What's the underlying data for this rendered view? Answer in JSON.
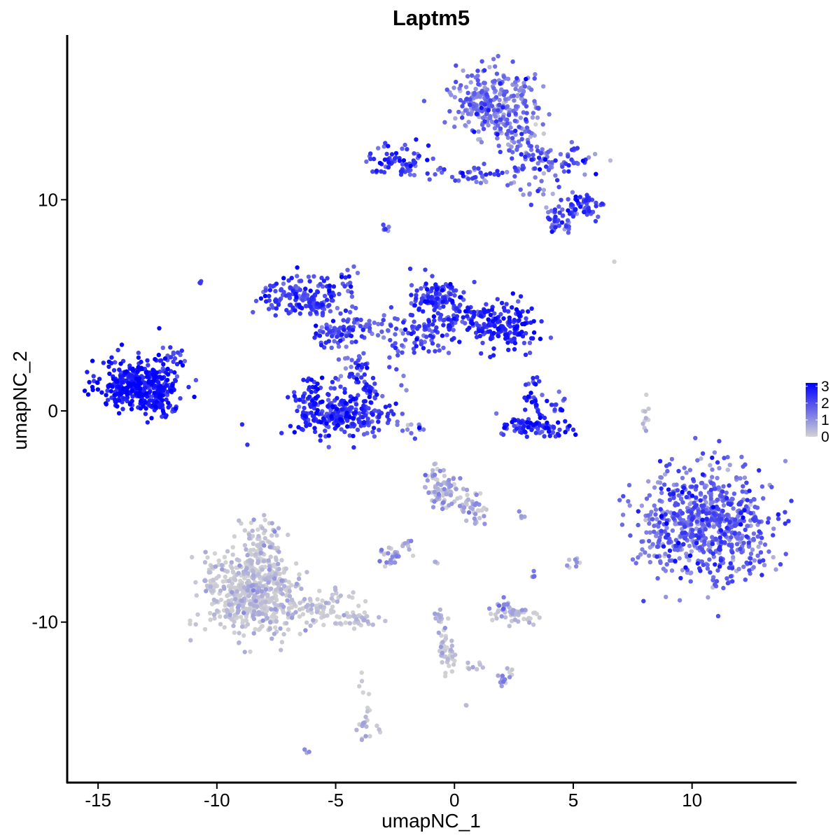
{
  "chart_data": {
    "type": "scatter",
    "title": "Laptm5",
    "xlabel": "umapNC_1",
    "ylabel": "umapNC_2",
    "xlim": [
      -16.3,
      14.4
    ],
    "ylim": [
      -17.6,
      17.8
    ],
    "x_ticks": [
      -15,
      -10,
      -5,
      0,
      5,
      10
    ],
    "y_ticks": [
      -10,
      0,
      10
    ],
    "x_tick_labels": [
      "-15",
      "-10",
      "-5",
      "0",
      "5",
      "10"
    ],
    "y_tick_labels": [
      "-10",
      "0",
      "10"
    ],
    "grid": false,
    "legend": {
      "position": "right",
      "type": "continuous",
      "min": 0,
      "max": 3.2,
      "ticks": [
        0,
        1,
        2,
        3
      ],
      "tick_labels": [
        "0",
        "1",
        "2",
        "3"
      ],
      "colors": [
        "#d3d3d3",
        "#0000ff"
      ]
    },
    "clusters": [
      {
        "cx": -13.3,
        "cy": 1.2,
        "sx": 0.8,
        "sy": 0.6,
        "n": 380,
        "expr": 2.8,
        "spread": 0.4
      },
      {
        "cx": -12.0,
        "cy": 1.6,
        "sx": 0.35,
        "sy": 0.8,
        "n": 40,
        "expr": 2.5,
        "spread": 0.5
      },
      {
        "cx": -12.5,
        "cy": 0.1,
        "sx": 0.4,
        "sy": 0.2,
        "n": 20,
        "expr": 2.6,
        "spread": 0.4
      },
      {
        "cx": -11.7,
        "cy": 2.6,
        "sx": 0.15,
        "sy": 0.2,
        "n": 8,
        "expr": 2.3,
        "spread": 0.4
      },
      {
        "cx": -10.7,
        "cy": 6.1,
        "sx": 0.05,
        "sy": 0.05,
        "n": 3,
        "expr": 2.0,
        "spread": 0.3
      },
      {
        "cx": -6.5,
        "cy": 5.5,
        "sx": 0.8,
        "sy": 0.5,
        "n": 140,
        "expr": 2.2,
        "spread": 0.5
      },
      {
        "cx": -5.0,
        "cy": 3.7,
        "sx": 0.45,
        "sy": 0.35,
        "n": 70,
        "expr": 2.1,
        "spread": 0.5
      },
      {
        "cx": -5.6,
        "cy": 5.1,
        "sx": 0.5,
        "sy": 0.35,
        "n": 30,
        "expr": 2.0,
        "spread": 0.5
      },
      {
        "cx": -4.1,
        "cy": 2.0,
        "sx": 0.35,
        "sy": 0.6,
        "n": 30,
        "expr": 2.1,
        "spread": 0.5
      },
      {
        "cx": -4.5,
        "cy": 6.2,
        "sx": 0.2,
        "sy": 0.6,
        "n": 15,
        "expr": 2.0,
        "spread": 0.5
      },
      {
        "cx": -4.0,
        "cy": 4.0,
        "sx": 0.4,
        "sy": 0.3,
        "n": 15,
        "expr": 1.8,
        "spread": 0.5
      },
      {
        "cx": -3.2,
        "cy": 3.9,
        "sx": 0.4,
        "sy": 0.3,
        "n": 15,
        "expr": 1.9,
        "spread": 0.5
      },
      {
        "cx": -4.8,
        "cy": -0.2,
        "sx": 1.0,
        "sy": 0.5,
        "n": 240,
        "expr": 2.5,
        "spread": 0.45
      },
      {
        "cx": -6.0,
        "cy": 0.6,
        "sx": 0.35,
        "sy": 0.5,
        "n": 35,
        "expr": 2.5,
        "spread": 0.45
      },
      {
        "cx": -3.6,
        "cy": 0.8,
        "sx": 0.35,
        "sy": 0.5,
        "n": 35,
        "expr": 2.4,
        "spread": 0.45
      },
      {
        "cx": -0.9,
        "cy": 5.4,
        "sx": 0.55,
        "sy": 0.5,
        "n": 110,
        "expr": 2.3,
        "spread": 0.5
      },
      {
        "cx": -1.2,
        "cy": 3.6,
        "sx": 0.6,
        "sy": 0.6,
        "n": 60,
        "expr": 2.1,
        "spread": 0.5
      },
      {
        "cx": 0.5,
        "cy": 4.4,
        "sx": 0.8,
        "sy": 0.45,
        "n": 80,
        "expr": 2.3,
        "spread": 0.5
      },
      {
        "cx": 2.1,
        "cy": 4.0,
        "sx": 0.7,
        "sy": 0.55,
        "n": 140,
        "expr": 2.6,
        "spread": 0.4
      },
      {
        "cx": -2.4,
        "cy": 3.0,
        "sx": 0.2,
        "sy": 0.8,
        "n": 20,
        "expr": 1.8,
        "spread": 0.6
      },
      {
        "cx": -1.8,
        "cy": -0.8,
        "sx": 0.5,
        "sy": 0.3,
        "n": 12,
        "expr": 1.4,
        "spread": 0.6
      },
      {
        "cx": -2.9,
        "cy": 8.6,
        "sx": 0.1,
        "sy": 0.1,
        "n": 6,
        "expr": 1.8,
        "spread": 0.5
      },
      {
        "cx": 3.6,
        "cy": -0.8,
        "sx": 0.7,
        "sy": 0.25,
        "n": 80,
        "expr": 2.5,
        "spread": 0.45
      },
      {
        "cx": 3.3,
        "cy": 0.5,
        "sx": 0.25,
        "sy": 0.5,
        "n": 30,
        "expr": 2.4,
        "spread": 0.45
      },
      {
        "cx": 2.5,
        "cy": -0.5,
        "sx": 0.3,
        "sy": 0.25,
        "n": 12,
        "expr": 2.3,
        "spread": 0.5
      },
      {
        "cx": 4.4,
        "cy": 0.2,
        "sx": 0.2,
        "sy": 0.3,
        "n": 10,
        "expr": 2.2,
        "spread": 0.5
      },
      {
        "cx": 1.7,
        "cy": 14.6,
        "sx": 0.9,
        "sy": 0.8,
        "n": 300,
        "expr": 1.4,
        "spread": 0.6
      },
      {
        "cx": 2.9,
        "cy": 13.0,
        "sx": 0.5,
        "sy": 0.4,
        "n": 30,
        "expr": 1.3,
        "spread": 0.6
      },
      {
        "cx": -2.5,
        "cy": 11.8,
        "sx": 0.7,
        "sy": 0.35,
        "n": 70,
        "expr": 2.2,
        "spread": 0.5
      },
      {
        "cx": -0.3,
        "cy": 11.2,
        "sx": 0.9,
        "sy": 0.2,
        "n": 20,
        "expr": 2.0,
        "spread": 0.5
      },
      {
        "cx": 1.4,
        "cy": 11.1,
        "sx": 0.6,
        "sy": 0.3,
        "n": 20,
        "expr": 1.8,
        "spread": 0.6
      },
      {
        "cx": 3.2,
        "cy": 11.9,
        "sx": 0.6,
        "sy": 0.35,
        "n": 50,
        "expr": 1.7,
        "spread": 0.6
      },
      {
        "cx": 4.9,
        "cy": 11.9,
        "sx": 0.7,
        "sy": 0.35,
        "n": 40,
        "expr": 1.9,
        "spread": 0.6
      },
      {
        "cx": 5.4,
        "cy": 9.7,
        "sx": 0.35,
        "sy": 0.3,
        "n": 50,
        "expr": 2.2,
        "spread": 0.5
      },
      {
        "cx": 4.4,
        "cy": 9.1,
        "sx": 0.35,
        "sy": 0.35,
        "n": 40,
        "expr": 1.8,
        "spread": 0.6
      },
      {
        "cx": 3.5,
        "cy": 10.4,
        "sx": 0.6,
        "sy": 0.3,
        "n": 15,
        "expr": 1.5,
        "spread": 0.6
      },
      {
        "cx": 10.6,
        "cy": -5.3,
        "sx": 1.3,
        "sy": 1.3,
        "n": 700,
        "expr": 1.7,
        "spread": 0.6
      },
      {
        "cx": 8.8,
        "cy": -6.0,
        "sx": 0.5,
        "sy": 0.7,
        "n": 40,
        "expr": 1.2,
        "spread": 0.6
      },
      {
        "cx": 8.1,
        "cy": -0.3,
        "sx": 0.1,
        "sy": 0.5,
        "n": 10,
        "expr": 0.3,
        "spread": 0.3
      },
      {
        "cx": -8.5,
        "cy": -8.6,
        "sx": 1.0,
        "sy": 0.95,
        "n": 550,
        "expr": 0.12,
        "spread": 0.35
      },
      {
        "cx": -8.1,
        "cy": -6.2,
        "sx": 0.4,
        "sy": 0.7,
        "n": 60,
        "expr": 0.15,
        "spread": 0.4
      },
      {
        "cx": -5.7,
        "cy": -9.4,
        "sx": 1.1,
        "sy": 0.4,
        "n": 90,
        "expr": 0.12,
        "spread": 0.35
      },
      {
        "cx": -4.2,
        "cy": -10.0,
        "sx": 0.45,
        "sy": 0.2,
        "n": 30,
        "expr": 0.1,
        "spread": 0.3
      },
      {
        "cx": -0.5,
        "cy": -3.6,
        "sx": 0.45,
        "sy": 0.5,
        "n": 80,
        "expr": 0.4,
        "spread": 0.5
      },
      {
        "cx": 0.5,
        "cy": -4.4,
        "sx": 0.35,
        "sy": 0.35,
        "n": 30,
        "expr": 0.3,
        "spread": 0.5
      },
      {
        "cx": 0.9,
        "cy": -5.0,
        "sx": 0.15,
        "sy": 0.25,
        "n": 10,
        "expr": 0.4,
        "spread": 0.5
      },
      {
        "cx": -2.7,
        "cy": -6.9,
        "sx": 0.3,
        "sy": 0.25,
        "n": 25,
        "expr": 0.5,
        "spread": 0.6
      },
      {
        "cx": -2.0,
        "cy": -6.3,
        "sx": 0.15,
        "sy": 0.25,
        "n": 8,
        "expr": 0.4,
        "spread": 0.5
      },
      {
        "cx": -0.8,
        "cy": -7.2,
        "sx": 0.05,
        "sy": 0.05,
        "n": 3,
        "expr": 0.2,
        "spread": 0.3
      },
      {
        "cx": 2.4,
        "cy": -9.6,
        "sx": 0.45,
        "sy": 0.2,
        "n": 50,
        "expr": 0.2,
        "spread": 0.4
      },
      {
        "cx": 2.0,
        "cy": -9.2,
        "sx": 0.2,
        "sy": 0.2,
        "n": 10,
        "expr": 0.9,
        "spread": 0.6
      },
      {
        "cx": -0.3,
        "cy": -11.3,
        "sx": 0.2,
        "sy": 0.5,
        "n": 40,
        "expr": 0.15,
        "spread": 0.3
      },
      {
        "cx": -0.6,
        "cy": -10.2,
        "sx": 0.15,
        "sy": 0.5,
        "n": 15,
        "expr": 0.3,
        "spread": 0.4
      },
      {
        "cx": 0.9,
        "cy": -12.0,
        "sx": 0.3,
        "sy": 0.2,
        "n": 8,
        "expr": 0.2,
        "spread": 0.3
      },
      {
        "cx": 2.3,
        "cy": -12.7,
        "sx": 0.25,
        "sy": 0.25,
        "n": 15,
        "expr": 0.4,
        "spread": 0.5
      },
      {
        "cx": -3.7,
        "cy": -15.0,
        "sx": 0.25,
        "sy": 0.5,
        "n": 20,
        "expr": 0.3,
        "spread": 0.5
      },
      {
        "cx": -3.9,
        "cy": -12.8,
        "sx": 0.1,
        "sy": 0.4,
        "n": 5,
        "expr": 0.1,
        "spread": 0.2
      },
      {
        "cx": -6.1,
        "cy": -16.1,
        "sx": 0.1,
        "sy": 0.05,
        "n": 3,
        "expr": 0.8,
        "spread": 0.3
      },
      {
        "cx": 5.0,
        "cy": -7.2,
        "sx": 0.15,
        "sy": 0.15,
        "n": 8,
        "expr": 0.6,
        "spread": 0.5
      },
      {
        "cx": 3.3,
        "cy": -7.7,
        "sx": 0.1,
        "sy": 0.1,
        "n": 4,
        "expr": 1.3,
        "spread": 0.5
      },
      {
        "cx": 2.8,
        "cy": -5.0,
        "sx": 0.1,
        "sy": 0.1,
        "n": 4,
        "expr": 0.8,
        "spread": 0.5
      },
      {
        "cx": 0.5,
        "cy": -13.9,
        "sx": 0.05,
        "sy": 0.05,
        "n": 2,
        "expr": 0.6,
        "spread": 0.3
      },
      {
        "cx": 6.8,
        "cy": 7.1,
        "sx": 0.05,
        "sy": 0.05,
        "n": 1,
        "expr": 0.2,
        "spread": 0.1
      }
    ]
  }
}
